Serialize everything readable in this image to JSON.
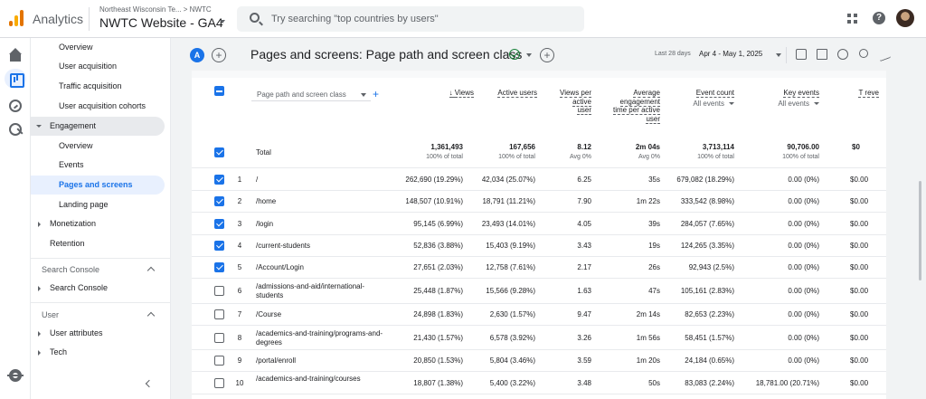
{
  "header": {
    "app_name": "Analytics",
    "breadcrumb": "Northeast Wisconsin Te... > NWTC",
    "property": "NWTC Website - GA4",
    "search_placeholder": "Try searching \"top countries by users\""
  },
  "nav": {
    "items": [
      {
        "label": "Overview",
        "level": 2
      },
      {
        "label": "User acquisition",
        "level": 2
      },
      {
        "label": "Traffic acquisition",
        "level": 2
      },
      {
        "label": "User acquisition cohorts",
        "level": 2
      },
      {
        "label": "Engagement",
        "level": 1,
        "expanded": true
      },
      {
        "label": "Overview",
        "level": 2
      },
      {
        "label": "Events",
        "level": 2
      },
      {
        "label": "Pages and screens",
        "level": 2,
        "selected": true
      },
      {
        "label": "Landing page",
        "level": 2
      },
      {
        "label": "Monetization",
        "level": 1
      },
      {
        "label": "Retention",
        "level": 1
      }
    ],
    "section_search_console": "Search Console",
    "search_console_item": "Search Console",
    "section_user": "User",
    "user_attributes": "User attributes",
    "tech": "Tech"
  },
  "report": {
    "avatar_letter": "A",
    "title": "Pages and screens: Page path and screen class",
    "date_label": "Last 28 days",
    "date_range": "Apr 4 - May 1, 2025"
  },
  "table": {
    "dimension": "Page path and screen class",
    "columns": [
      {
        "label": "Views",
        "sub": "",
        "sorted": true
      },
      {
        "label": "Active users",
        "sub": ""
      },
      {
        "label": "Views per active user",
        "sub": ""
      },
      {
        "label": "Average engagement time per active user",
        "sub": ""
      },
      {
        "label": "Event count",
        "sub": "All events"
      },
      {
        "label": "Key events",
        "sub": "All events"
      },
      {
        "label": "T reve",
        "sub": ""
      }
    ],
    "total_label": "Total",
    "totals": [
      "1,361,493",
      "167,656",
      "8.12",
      "2m 04s",
      "3,713,114",
      "90,706.00",
      "$0"
    ],
    "total_subs": [
      "100% of total",
      "100% of total",
      "Avg 0%",
      "Avg 0%",
      "100% of total",
      "100% of total",
      ""
    ],
    "rows": [
      {
        "idx": "1",
        "path": "/",
        "checked": true,
        "views": "262,690 (19.29%)",
        "users": "42,034 (25.07%)",
        "vpu": "6.25",
        "time": "35s",
        "events": "679,082 (18.29%)",
        "key": "0.00 (0%)",
        "rev": "$0.00"
      },
      {
        "idx": "2",
        "path": "/home",
        "checked": true,
        "views": "148,507 (10.91%)",
        "users": "18,791 (11.21%)",
        "vpu": "7.90",
        "time": "1m 22s",
        "events": "333,542 (8.98%)",
        "key": "0.00 (0%)",
        "rev": "$0.00"
      },
      {
        "idx": "3",
        "path": "/login",
        "checked": true,
        "views": "95,145 (6.99%)",
        "users": "23,493 (14.01%)",
        "vpu": "4.05",
        "time": "39s",
        "events": "284,057 (7.65%)",
        "key": "0.00 (0%)",
        "rev": "$0.00"
      },
      {
        "idx": "4",
        "path": "/current-students",
        "checked": true,
        "views": "52,836 (3.88%)",
        "users": "15,403 (9.19%)",
        "vpu": "3.43",
        "time": "19s",
        "events": "124,265 (3.35%)",
        "key": "0.00 (0%)",
        "rev": "$0.00"
      },
      {
        "idx": "5",
        "path": "/Account/Login",
        "checked": true,
        "views": "27,651 (2.03%)",
        "users": "12,758 (7.61%)",
        "vpu": "2.17",
        "time": "26s",
        "events": "92,943 (2.5%)",
        "key": "0.00 (0%)",
        "rev": "$0.00"
      },
      {
        "idx": "6",
        "path": "/admissions-and-aid/international-students",
        "checked": false,
        "views": "25,448 (1.87%)",
        "users": "15,566 (9.28%)",
        "vpu": "1.63",
        "time": "47s",
        "events": "105,161 (2.83%)",
        "key": "0.00 (0%)",
        "rev": "$0.00"
      },
      {
        "idx": "7",
        "path": "/Course",
        "checked": false,
        "views": "24,898 (1.83%)",
        "users": "2,630 (1.57%)",
        "vpu": "9.47",
        "time": "2m 14s",
        "events": "82,653 (2.23%)",
        "key": "0.00 (0%)",
        "rev": "$0.00"
      },
      {
        "idx": "8",
        "path": "/academics-and-training/programs-and-degrees",
        "checked": false,
        "views": "21,430 (1.57%)",
        "users": "6,578 (3.92%)",
        "vpu": "3.26",
        "time": "1m 56s",
        "events": "58,451 (1.57%)",
        "key": "0.00 (0%)",
        "rev": "$0.00"
      },
      {
        "idx": "9",
        "path": "/portal/enroll",
        "checked": false,
        "views": "20,850 (1.53%)",
        "users": "5,804 (3.46%)",
        "vpu": "3.59",
        "time": "1m 20s",
        "events": "24,184 (0.65%)",
        "key": "0.00 (0%)",
        "rev": "$0.00"
      },
      {
        "idx": "10",
        "path": "/academics-and-training/courses",
        "checked": false,
        "views": "18,807 (1.38%)",
        "users": "5,400 (3.22%)",
        "vpu": "3.48",
        "time": "50s",
        "events": "83,083 (2.24%)",
        "key": "18,781.00 (20.71%)",
        "rev": "$0.00"
      }
    ]
  }
}
